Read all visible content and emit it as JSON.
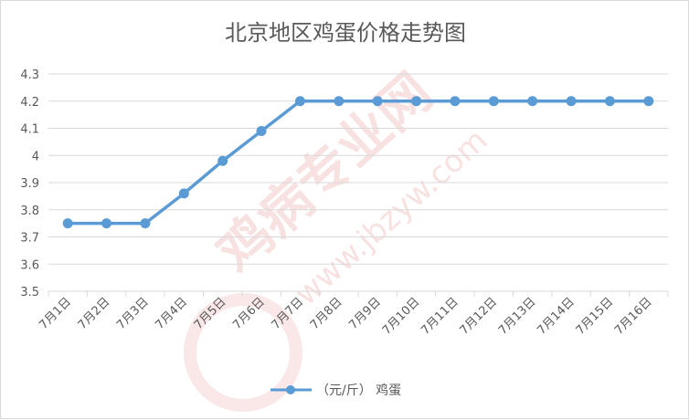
{
  "chart_data": {
    "type": "line",
    "title": "北京地区鸡蛋价格走势图",
    "categories": [
      "7月1日",
      "7月2日",
      "7月3日",
      "7月4日",
      "7月5日",
      "7月6日",
      "7月7日",
      "7月8日",
      "7月9日",
      "7月10日",
      "7月11日",
      "7月12日",
      "7月13日",
      "7月14日",
      "7月15日",
      "7月16日"
    ],
    "series": [
      {
        "name": "（元/斤） 鸡蛋",
        "values": [
          3.75,
          3.75,
          3.75,
          3.86,
          3.98,
          4.09,
          4.2,
          4.2,
          4.2,
          4.2,
          4.2,
          4.2,
          4.2,
          4.2,
          4.2,
          4.2
        ]
      }
    ],
    "ylim": [
      3.5,
      4.3
    ],
    "yticks": [
      "3.5",
      "3.6",
      "3.7",
      "3.8",
      "3.9",
      "4",
      "4.1",
      "4.2",
      "4.3"
    ],
    "xlabel": "",
    "ylabel": "",
    "grid": true,
    "legend_position": "bottom",
    "line_color": "#5b9bd5",
    "grid_color": "#d9d9d9",
    "text_color": "#595959"
  },
  "watermark": {
    "brand": "鸡病专业网",
    "url": "www.jbzyw.com",
    "color": "#f3c9c9"
  }
}
